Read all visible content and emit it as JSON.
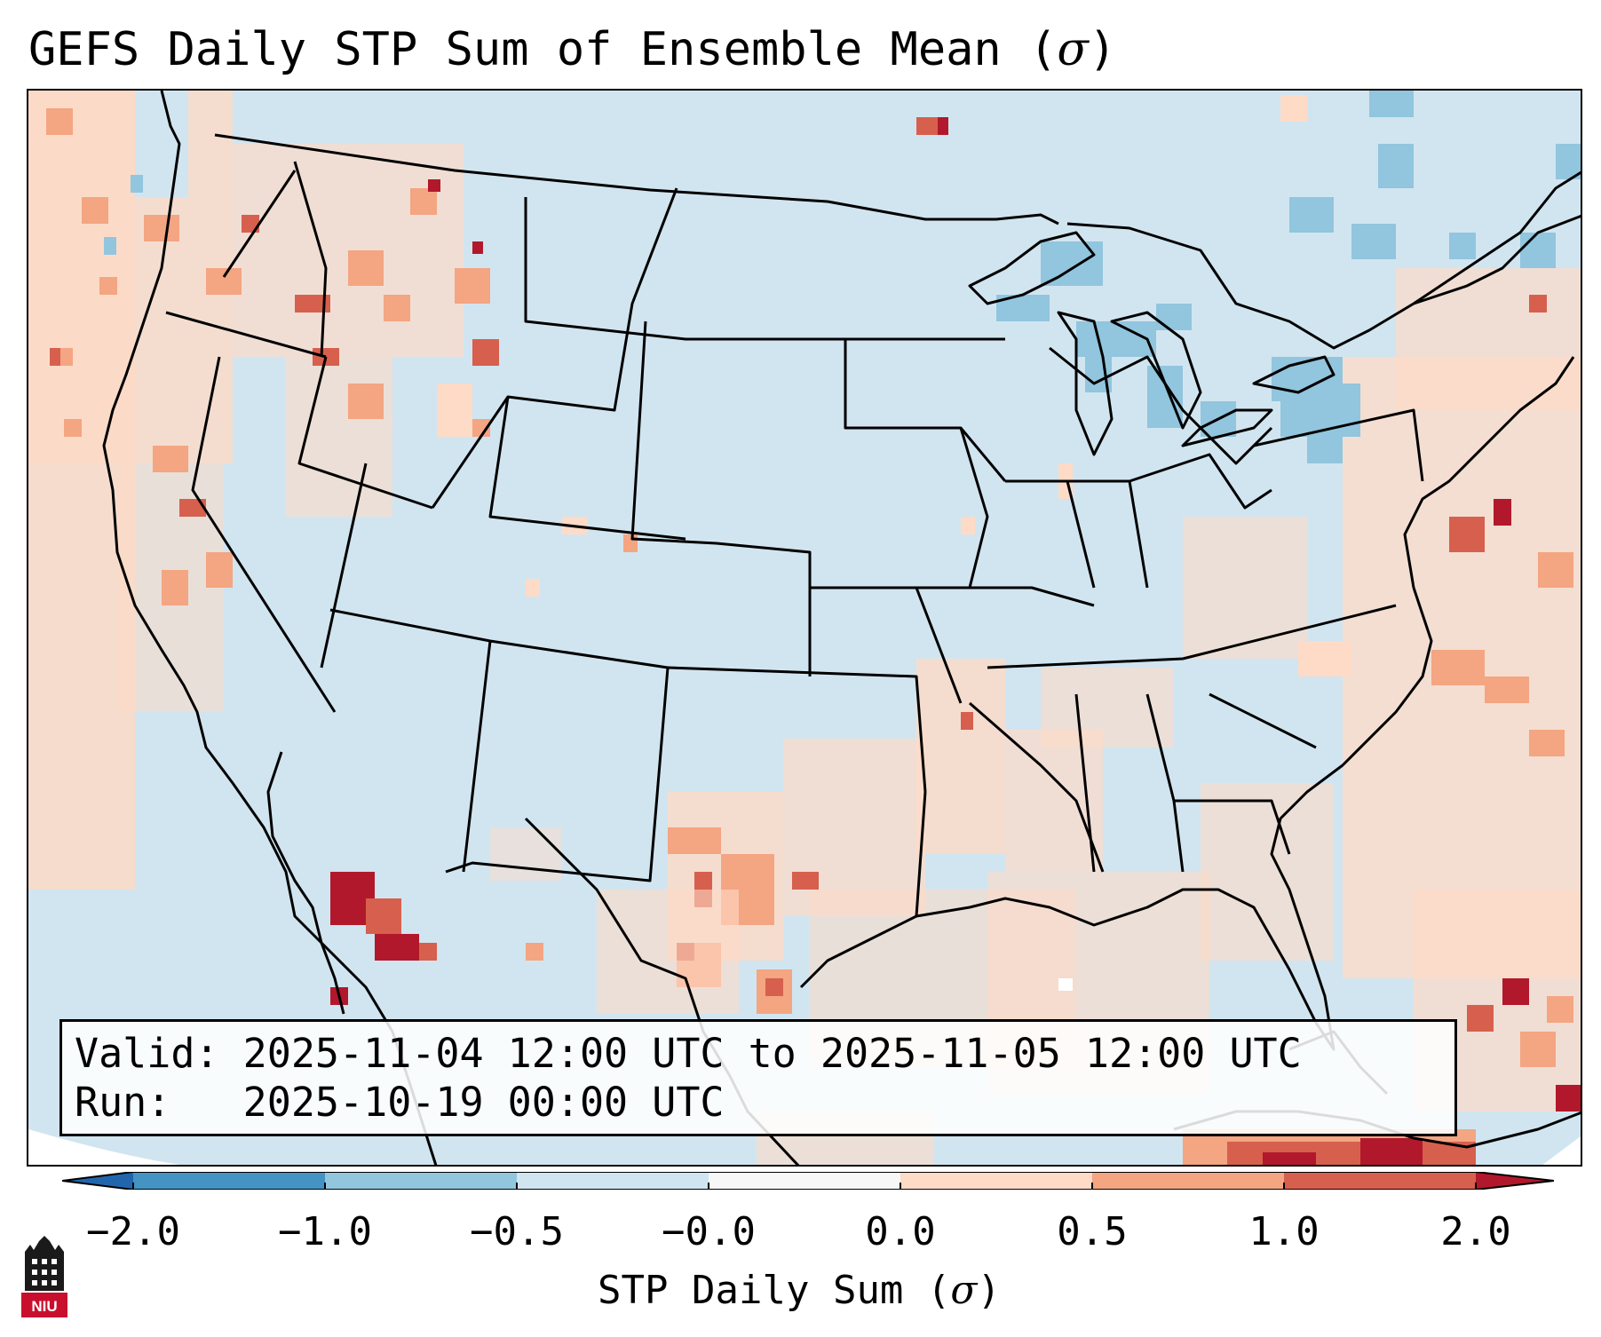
{
  "figure": {
    "title": "GEFS Daily STP Sum of Ensemble Mean (",
    "title_symbol": "σ",
    "title_close": ")"
  },
  "info_box": {
    "valid_label": "Valid:",
    "valid_value": "2025-11-04 12:00 UTC to 2025-11-05 12:00 UTC",
    "run_label": "Run:",
    "run_value": "2025-10-19 00:00 UTC"
  },
  "colorbar": {
    "label_text": "STP Daily Sum (",
    "label_symbol": "σ",
    "label_close": ")",
    "tick_labels": [
      "−2.0",
      "−1.0",
      "−0.5",
      "−0.0",
      "0.0",
      "0.5",
      "1.0",
      "2.0"
    ],
    "colors": [
      "#4393c3",
      "#92c5de",
      "#d1e5f0",
      "#f7f7f7",
      "#fddbc7",
      "#f4a582",
      "#d6604d",
      "#b2182b"
    ],
    "underflow_color": "#2166ac",
    "overflow_color": "#b2182b"
  },
  "map": {
    "background_color": "#d1e5f0",
    "outline_color": "#000000"
  },
  "logo": {
    "text": "NIU"
  }
}
